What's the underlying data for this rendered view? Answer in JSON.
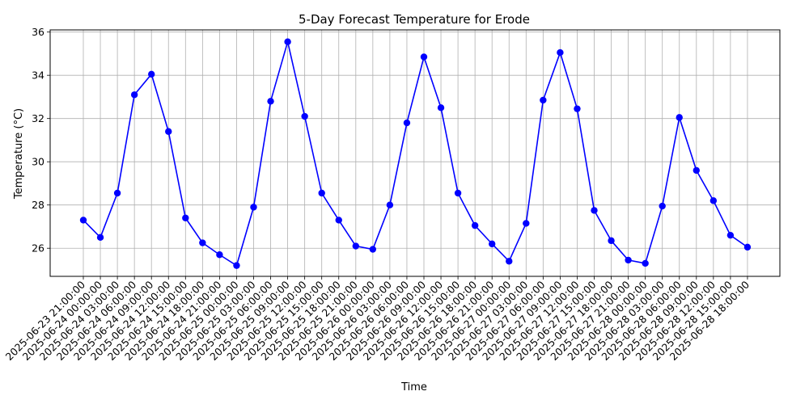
{
  "chart_data": {
    "type": "line",
    "title": "5-Day Forecast Temperature for Erode",
    "xlabel": "Time",
    "ylabel": "Temperature (°C)",
    "ylim": [
      24.7,
      36.1
    ],
    "yticks": [
      26,
      28,
      30,
      32,
      34,
      36
    ],
    "grid": true,
    "colors": {
      "line": "#0000ff",
      "marker": "#0000ff",
      "grid": "#b0b0b0"
    },
    "categories": [
      "2025-06-23 21:00:00",
      "2025-06-24 00:00:00",
      "2025-06-24 03:00:00",
      "2025-06-24 06:00:00",
      "2025-06-24 09:00:00",
      "2025-06-24 12:00:00",
      "2025-06-24 15:00:00",
      "2025-06-24 18:00:00",
      "2025-06-24 21:00:00",
      "2025-06-25 00:00:00",
      "2025-06-25 03:00:00",
      "2025-06-25 06:00:00",
      "2025-06-25 09:00:00",
      "2025-06-25 12:00:00",
      "2025-06-25 15:00:00",
      "2025-06-25 18:00:00",
      "2025-06-25 21:00:00",
      "2025-06-26 00:00:00",
      "2025-06-26 03:00:00",
      "2025-06-26 06:00:00",
      "2025-06-26 09:00:00",
      "2025-06-26 12:00:00",
      "2025-06-26 15:00:00",
      "2025-06-26 18:00:00",
      "2025-06-26 21:00:00",
      "2025-06-27 00:00:00",
      "2025-06-27 03:00:00",
      "2025-06-27 06:00:00",
      "2025-06-27 09:00:00",
      "2025-06-27 12:00:00",
      "2025-06-27 15:00:00",
      "2025-06-27 18:00:00",
      "2025-06-27 21:00:00",
      "2025-06-28 00:00:00",
      "2025-06-28 03:00:00",
      "2025-06-28 06:00:00",
      "2025-06-28 09:00:00",
      "2025-06-28 12:00:00",
      "2025-06-28 15:00:00",
      "2025-06-28 18:00:00"
    ],
    "values": [
      27.3,
      26.5,
      28.55,
      33.1,
      34.05,
      31.4,
      27.4,
      26.25,
      25.7,
      25.2,
      27.9,
      32.8,
      35.55,
      32.1,
      28.55,
      27.3,
      26.1,
      25.95,
      28.0,
      31.8,
      34.85,
      32.5,
      28.55,
      27.05,
      26.2,
      25.4,
      27.15,
      32.85,
      35.05,
      32.45,
      27.75,
      26.35,
      25.45,
      25.3,
      27.95,
      32.05,
      29.6,
      28.2,
      26.6,
      26.05
    ]
  }
}
